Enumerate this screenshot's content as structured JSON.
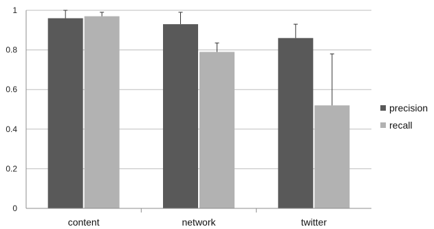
{
  "chart_data": {
    "type": "bar",
    "categories": [
      "content",
      "network",
      "twitter"
    ],
    "series": [
      {
        "name": "precision",
        "color": "#595959",
        "values": [
          0.96,
          0.93,
          0.86
        ],
        "errors": [
          0.04,
          0.06,
          0.07
        ]
      },
      {
        "name": "recall",
        "color": "#b2b2b2",
        "values": [
          0.97,
          0.79,
          0.52
        ],
        "errors": [
          0.02,
          0.045,
          0.26
        ]
      }
    ],
    "ylim": [
      0,
      1
    ],
    "yticks": [
      0,
      0.2,
      0.4,
      0.6,
      0.8,
      1
    ],
    "ytick_labels": [
      "0",
      "0.2",
      "0.4",
      "0.6",
      "0.8",
      "1"
    ],
    "title": "",
    "xlabel": "",
    "ylabel": "",
    "grid": "horizontal",
    "legend_position": "right"
  }
}
